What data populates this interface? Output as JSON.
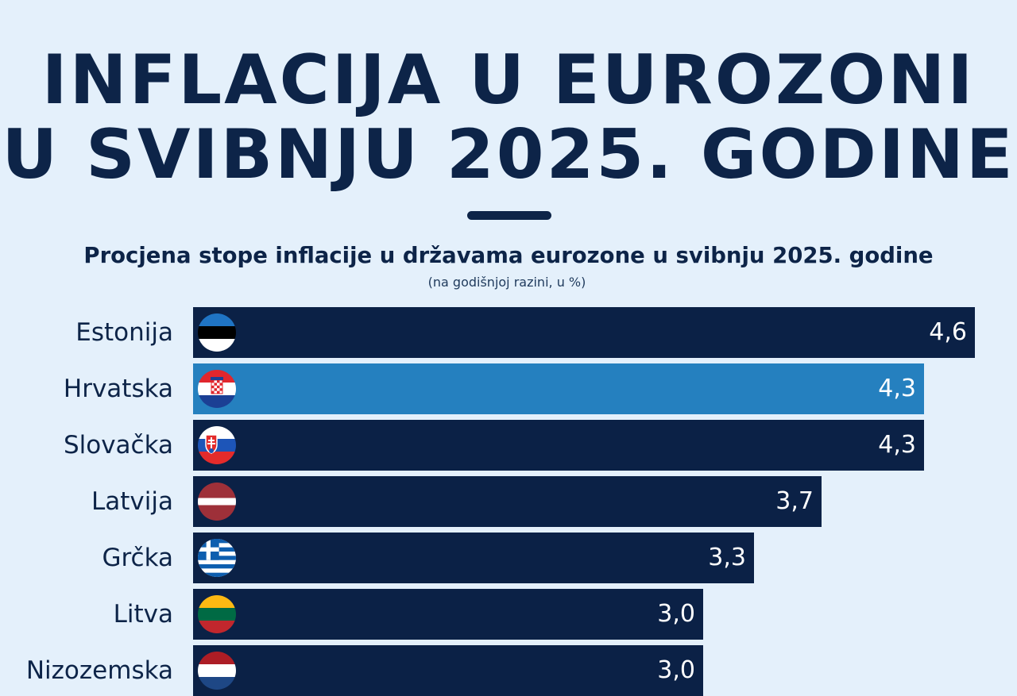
{
  "header": {
    "title_line1": "INFLACIJA U EUROZONI",
    "title_line2": "U SVIBNJU 2025. GODINE"
  },
  "chart_data": {
    "type": "bar",
    "orientation": "horizontal",
    "title": "Procjena stope inflacije u državama eurozone u svibnju 2025. godine",
    "subtitle": "(na godišnjoj razini, u %)",
    "categories": [
      "Estonija",
      "Hrvatska",
      "Slovačka",
      "Latvija",
      "Grčka",
      "Litva",
      "Nizozemska"
    ],
    "values": [
      4.6,
      4.3,
      4.3,
      3.7,
      3.3,
      3.0,
      3.0
    ],
    "value_labels": [
      "4,6",
      "4,3",
      "4,3",
      "3,7",
      "3,3",
      "3,0",
      "3,0"
    ],
    "flag_icons": [
      "flag-estonia-icon",
      "flag-croatia-icon",
      "flag-slovakia-icon",
      "flag-latvia-icon",
      "flag-greece-icon",
      "flag-lithuania-icon",
      "flag-netherlands-icon"
    ],
    "highlight": "Hrvatska",
    "colors": {
      "bar": "#0b2146",
      "highlight_bar": "#2580bf",
      "background": "#e4f0fb",
      "text": "#0d2448"
    },
    "grid": false,
    "legend": "none"
  }
}
